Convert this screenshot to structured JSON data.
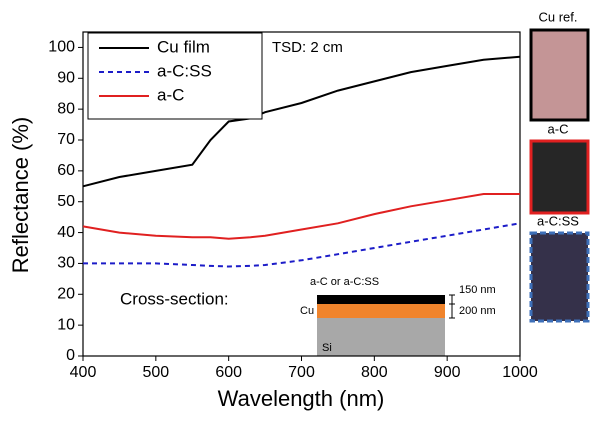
{
  "chart_data": {
    "type": "line",
    "xlabel": "Wavelength (nm)",
    "ylabel": "Reflectance (%)",
    "x": [
      400,
      450,
      500,
      550,
      575,
      600,
      630,
      650,
      700,
      750,
      800,
      850,
      900,
      950,
      1000
    ],
    "series": [
      {
        "name": "Cu film",
        "color": "#000000",
        "style": "solid",
        "values": [
          55,
          58,
          60,
          62,
          70,
          76,
          77,
          79,
          82,
          86,
          89,
          92,
          94,
          96,
          97
        ]
      },
      {
        "name": "a-C:SS",
        "color": "#1c1cc8",
        "style": "dashed",
        "values": [
          30,
          30,
          30,
          29.5,
          29.2,
          29,
          29.2,
          29.5,
          31,
          33,
          35,
          37,
          39,
          41,
          43
        ]
      },
      {
        "name": "a-C",
        "color": "#e02020",
        "style": "solid",
        "values": [
          42,
          40,
          39,
          38.5,
          38.5,
          38,
          38.5,
          39,
          41,
          43,
          46,
          48.5,
          50.5,
          52.5,
          52.5
        ]
      }
    ],
    "xlim": [
      400,
      1000
    ],
    "xticks": [
      400,
      500,
      600,
      700,
      800,
      900,
      1000
    ],
    "ylim": [
      0,
      105
    ],
    "yticks": [
      0,
      10,
      20,
      30,
      40,
      50,
      60,
      70,
      80,
      90,
      100
    ],
    "legend": "upper left",
    "annotation": "TSD: 2 cm",
    "inset": {
      "title": "Cross-section:",
      "top_layer": "a-C or a-C:SS",
      "middle_layer": "Cu",
      "substrate": "Si",
      "top_thickness": "150 nm",
      "middle_thickness": "200 nm"
    },
    "samples": [
      {
        "label": "Cu ref.",
        "color": "#000000",
        "fill": "#c49596"
      },
      {
        "label": "a-C",
        "color": "#e02020",
        "fill": "#262626"
      },
      {
        "label": "a-C:SS",
        "color": "#3d6fb8",
        "fill": "#35314a"
      }
    ]
  }
}
